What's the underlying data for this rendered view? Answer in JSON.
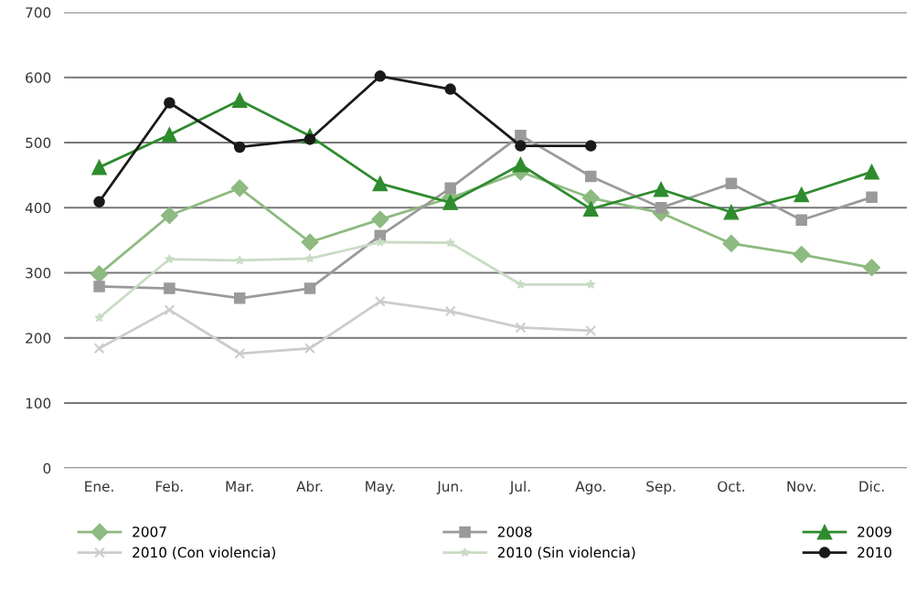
{
  "chart_data": {
    "type": "line",
    "categories": [
      "Ene.",
      "Feb.",
      "Mar.",
      "Abr.",
      "May.",
      "Jun.",
      "Jul.",
      "Ago.",
      "Sep.",
      "Oct.",
      "Nov.",
      "Dic."
    ],
    "series": [
      {
        "name": "2007",
        "color": "#8dba80",
        "marker": "diamond",
        "values": [
          298,
          388,
          430,
          347,
          382,
          415,
          455,
          415,
          392,
          345,
          328,
          308
        ]
      },
      {
        "name": "2008",
        "color": "#9a9a9a",
        "marker": "square",
        "values": [
          279,
          276,
          261,
          276,
          357,
          430,
          511,
          448,
          400,
          437,
          381,
          416
        ]
      },
      {
        "name": "2009",
        "color": "#2e8b2e",
        "marker": "triangle",
        "values": [
          462,
          512,
          565,
          510,
          437,
          408,
          466,
          398,
          428,
          393,
          420,
          455
        ]
      },
      {
        "name": "2010 (Con violencia)",
        "color": "#cccccc",
        "marker": "cross",
        "values": [
          184,
          243,
          176,
          184,
          256,
          241,
          216,
          211,
          null,
          null,
          null,
          null
        ]
      },
      {
        "name": "2010 (Sin violencia)",
        "color": "#c8dcc4",
        "marker": "star",
        "values": [
          231,
          321,
          319,
          322,
          347,
          346,
          282,
          282,
          null,
          null,
          null,
          null
        ]
      },
      {
        "name": "2010",
        "color": "#1a1a1a",
        "marker": "circle",
        "values": [
          409,
          561,
          493,
          505,
          602,
          582,
          495,
          495,
          null,
          null,
          null,
          null
        ]
      }
    ],
    "ylim": [
      0,
      700
    ],
    "yticks": [
      0,
      100,
      200,
      300,
      400,
      500,
      600,
      700
    ],
    "grid": "y",
    "legend": "bottom",
    "line_style": "solid"
  }
}
